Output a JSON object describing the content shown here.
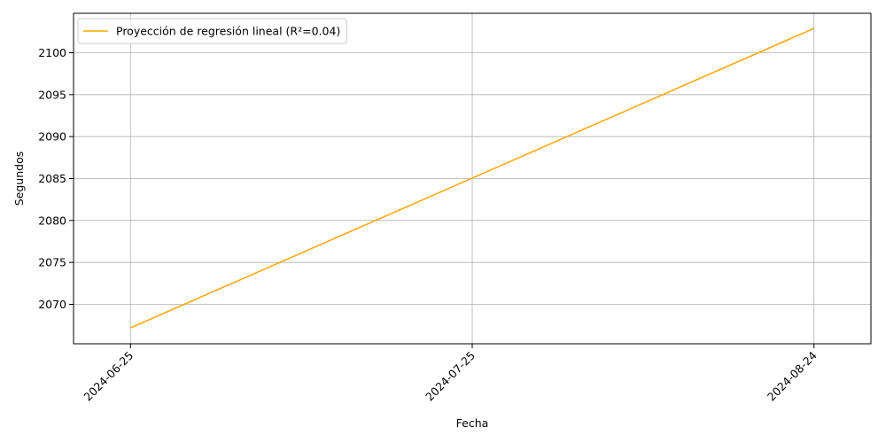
{
  "chart_data": {
    "type": "line",
    "xlabel": "Fecha",
    "ylabel": "Segundos",
    "x_ticks": [
      "2024-06-25",
      "2024-07-25",
      "2024-08-24"
    ],
    "y_ticks": [
      2070,
      2075,
      2080,
      2085,
      2090,
      2095,
      2100
    ],
    "xlim": [
      "2024-06-20",
      "2024-08-29"
    ],
    "ylim": [
      2065.3,
      2104.7
    ],
    "grid": true,
    "legend_position": "top-left",
    "series": [
      {
        "name": "Proyección de regresión lineal (R²=0.04)",
        "color": "#FFA500",
        "x": [
          "2024-06-25",
          "2024-08-24"
        ],
        "y": [
          2067.2,
          2102.9
        ]
      }
    ]
  }
}
